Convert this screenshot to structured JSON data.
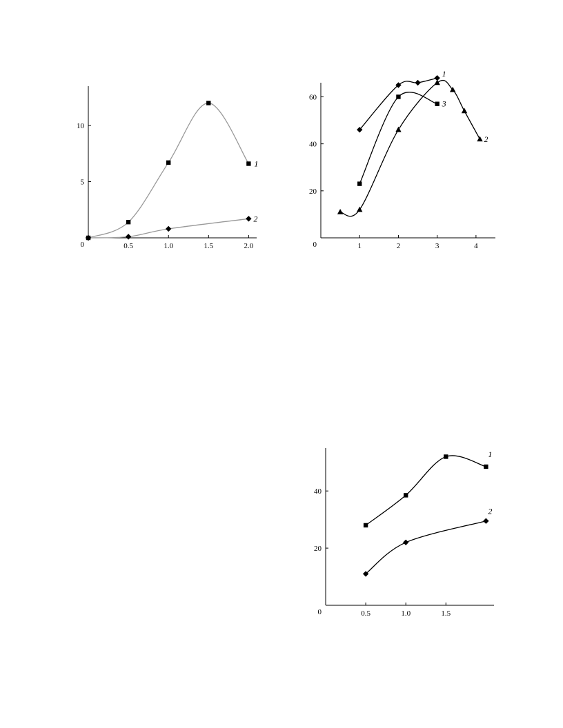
{
  "chart_data": [
    {
      "id": "chart-a",
      "type": "line",
      "title": "",
      "xlabel": "",
      "ylabel": "",
      "xlim": [
        0,
        2.1
      ],
      "ylim": [
        0,
        13.5
      ],
      "origin_label": "0",
      "xticks": [
        0.5,
        1.0,
        1.5,
        2.0
      ],
      "xtick_labels": [
        "0.5",
        "1.0",
        "1.5",
        "2.0"
      ],
      "yticks": [
        5,
        10
      ],
      "ytick_labels": [
        "5",
        "10"
      ],
      "grid": false,
      "line_color": "#999999",
      "series": [
        {
          "label": "1",
          "marker": "square",
          "x": [
            0,
            0.5,
            1.0,
            1.5,
            2.0
          ],
          "y": [
            0,
            1.4,
            6.7,
            12.0,
            6.6
          ]
        },
        {
          "label": "2",
          "marker": "diamond",
          "x": [
            0,
            0.5,
            1.0,
            2.0
          ],
          "y": [
            0,
            0.1,
            0.8,
            1.7
          ]
        }
      ]
    },
    {
      "id": "chart-b",
      "type": "line",
      "title": "",
      "xlabel": "",
      "ylabel": "",
      "xlim": [
        0,
        4.5
      ],
      "ylim": [
        0,
        66
      ],
      "origin_label": "0",
      "xticks": [
        1,
        2,
        3,
        4
      ],
      "xtick_labels": [
        "1",
        "2",
        "3",
        "4"
      ],
      "yticks": [
        20,
        40,
        60
      ],
      "ytick_labels": [
        "20",
        "40",
        "60"
      ],
      "grid": false,
      "line_color": "#000000",
      "series": [
        {
          "label": "1",
          "marker": "diamond",
          "x": [
            1,
            2,
            2.5,
            3
          ],
          "y": [
            46,
            65,
            66,
            68
          ]
        },
        {
          "label": "2",
          "marker": "triangle",
          "x": [
            0.5,
            1,
            2,
            3,
            3.4,
            3.7,
            4.1
          ],
          "y": [
            11,
            12,
            46,
            66,
            63,
            54,
            42
          ]
        },
        {
          "label": "3",
          "marker": "square",
          "x": [
            1,
            2,
            3
          ],
          "y": [
            23,
            60,
            57
          ]
        }
      ]
    },
    {
      "id": "chart-c",
      "type": "line",
      "title": "",
      "xlabel": "",
      "ylabel": "",
      "xlim": [
        0,
        2.1
      ],
      "ylim": [
        0,
        55
      ],
      "origin_label": "0",
      "xticks": [
        0.5,
        1.0,
        1.5
      ],
      "xtick_labels": [
        "0.5",
        "1.0",
        "1.5"
      ],
      "yticks": [
        20,
        40
      ],
      "ytick_labels": [
        "20",
        "40"
      ],
      "grid": false,
      "line_color": "#000000",
      "series": [
        {
          "label": "1",
          "marker": "square",
          "x": [
            0.5,
            1.0,
            1.5,
            2.0
          ],
          "y": [
            28,
            38.5,
            52,
            48.5
          ]
        },
        {
          "label": "2",
          "marker": "diamond",
          "x": [
            0.5,
            1.0,
            2.0
          ],
          "y": [
            11,
            22,
            29.5
          ]
        }
      ]
    }
  ]
}
